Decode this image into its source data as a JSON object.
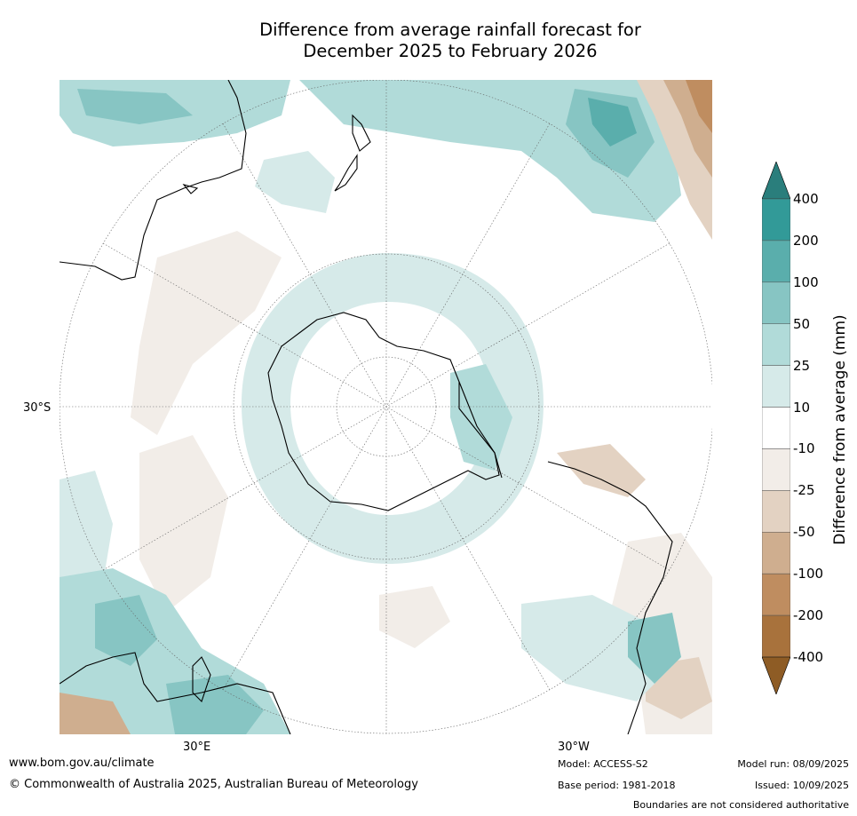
{
  "title": {
    "line1": "Difference from average rainfall forecast for",
    "line2": "December 2025 to February 2026"
  },
  "map": {
    "projection_view": "Southern Hemisphere polar view",
    "graticule_labels": {
      "left": "30°S",
      "bottom_left": "30°E",
      "bottom_right": "30°W"
    }
  },
  "colorbar": {
    "title": "Difference from average (mm)",
    "tick_labels": [
      "400",
      "200",
      "100",
      "50",
      "25",
      "10",
      "-10",
      "-25",
      "-50",
      "-100",
      "-200",
      "-400"
    ],
    "colors": {
      "above_max": "#2a7e7c",
      "200_400": "#329a98",
      "100_200": "#5aaeac",
      "50_100": "#87c5c3",
      "25_50": "#b1dbd9",
      "10_25": "#d6eae9",
      "neutral": "#ffffff",
      "n10_n25": "#f2ede8",
      "n25_n50": "#e3d2c2",
      "n50_n100": "#cfae8f",
      "n100_n200": "#bf8d60",
      "n200_n400": "#a8723c",
      "below_min": "#8e5c25"
    }
  },
  "footer": {
    "url": "www.bom.gov.au/climate",
    "copyright": "© Commonwealth of Australia 2025, Australian Bureau of Meteorology",
    "model": "Model: ACCESS-S2",
    "base_period": "Base period: 1981-2018",
    "model_run": "Model run: 08/09/2025",
    "issued": "Issued: 10/09/2025",
    "disclaimer": "Boundaries are not considered authoritative"
  }
}
